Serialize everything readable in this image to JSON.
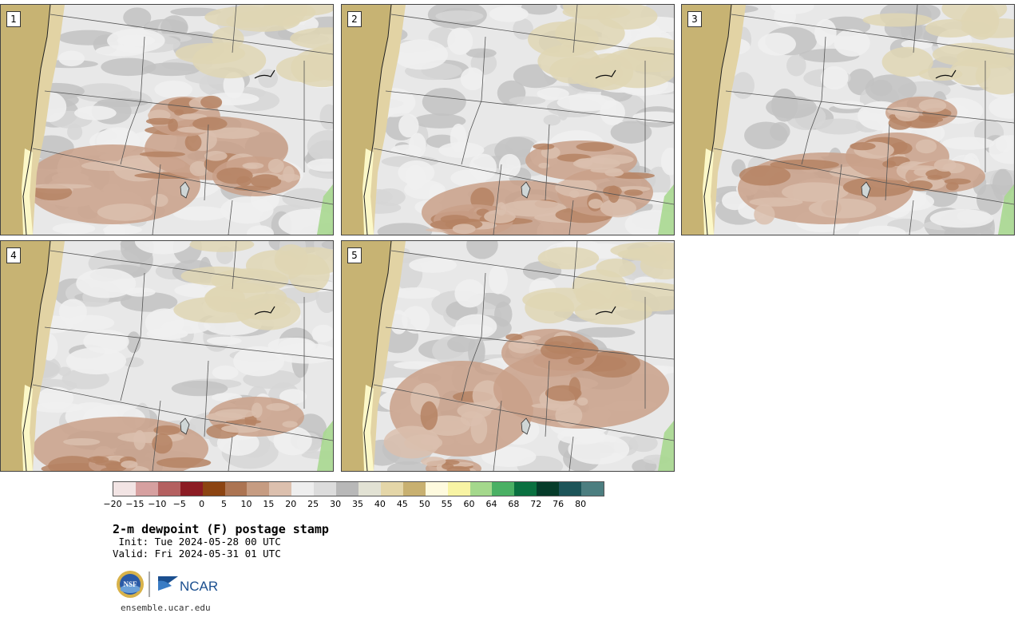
{
  "panels": [
    {
      "number": "1"
    },
    {
      "number": "2"
    },
    {
      "number": "3"
    },
    {
      "number": "4"
    },
    {
      "number": "5"
    }
  ],
  "colorbar": {
    "colors": [
      "#f2e4e4",
      "#d6a0a0",
      "#b46060",
      "#8c1c24",
      "#8c4412",
      "#ac7452",
      "#c69c82",
      "#dcc0ae",
      "#eeeeee",
      "#dcdcdc",
      "#b8b8b8",
      "#e2e2d4",
      "#e4d6a8",
      "#c8b070",
      "#fefade",
      "#f8f4a4",
      "#a4d88c",
      "#4ab064",
      "#0a7040",
      "#063c2a",
      "#1c5458",
      "#4c7e80"
    ],
    "tick_labels": [
      "−20",
      "−15",
      "−10",
      "−5",
      "0",
      "5",
      "10",
      "15",
      "20",
      "25",
      "30",
      "35",
      "40",
      "45",
      "50",
      "55",
      "60",
      "64",
      "68",
      "72",
      "76",
      "80"
    ]
  },
  "title": "2-m dewpoint (F) postage stamp",
  "init_text": " Init: Tue 2024-05-28 00 UTC",
  "valid_text": "Valid: Fri 2024-05-31 01 UTC",
  "logos": {
    "nsf": "NSF",
    "ncar": "NCAR"
  },
  "site": "ensemble.ucar.edu"
}
